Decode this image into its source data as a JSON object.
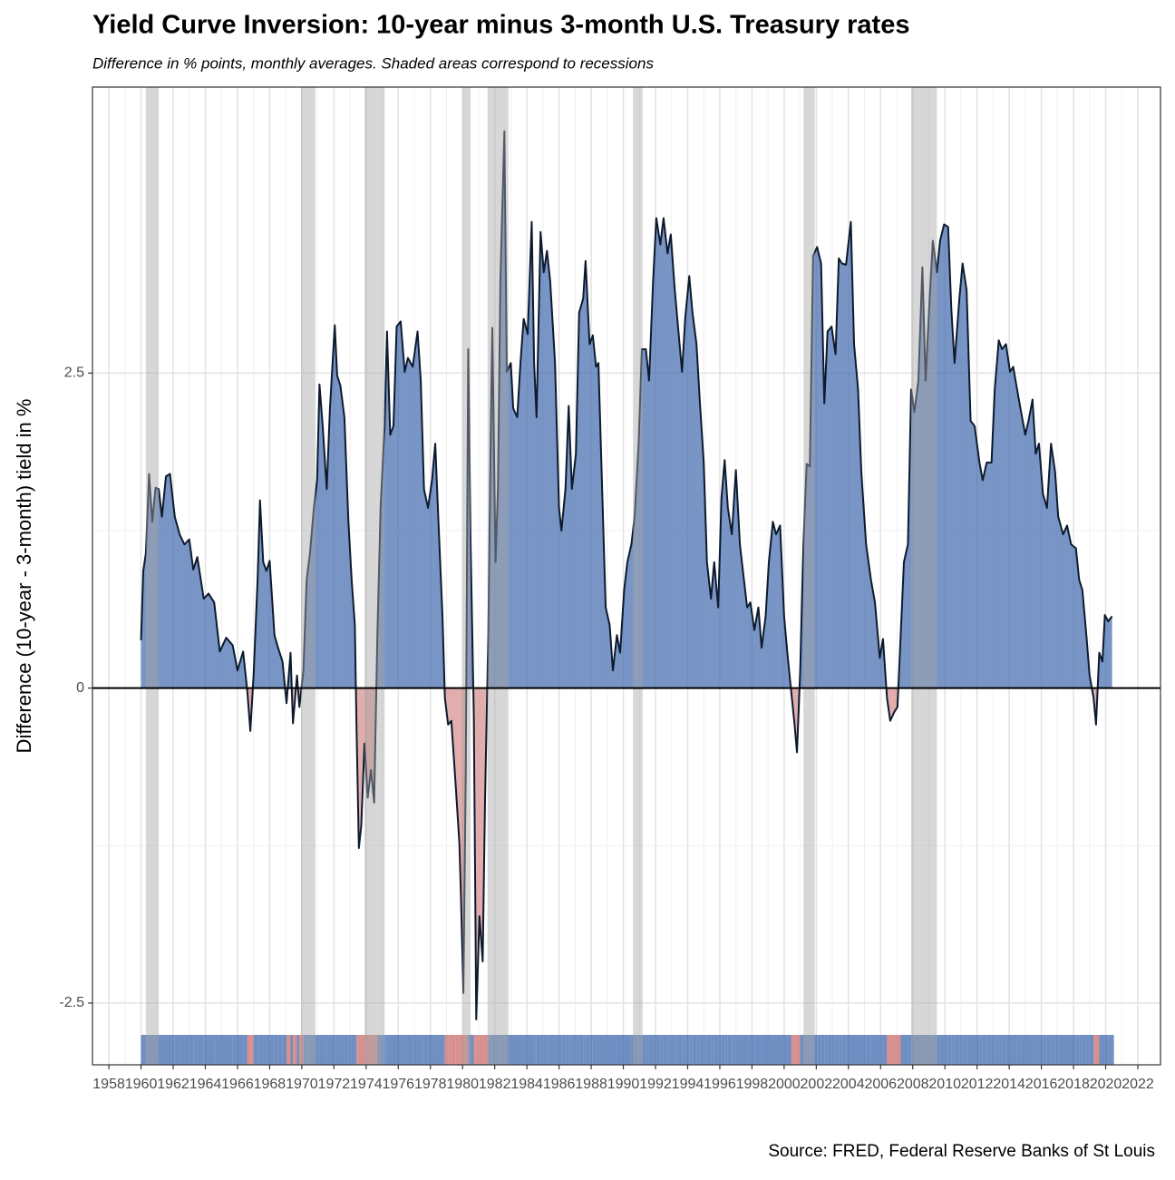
{
  "chart_data": {
    "type": "area",
    "title": "Yield Curve Inversion: 10-year minus 3-month U.S. Treasury rates",
    "subtitle": "Difference in % points, monthly averages. Shaded areas correspond to recessions",
    "y_label": "Difference (10-year - 3-month) tield in %",
    "caption": "Source: FRED, Federal Reserve Banks of St Louis",
    "xlim": [
      1956.98,
      2023.41
    ],
    "ylim": [
      -2.99,
      4.77
    ],
    "xticks": [
      1958,
      1960,
      1962,
      1964,
      1966,
      1968,
      1970,
      1972,
      1974,
      1976,
      1978,
      1980,
      1982,
      1984,
      1986,
      1988,
      1990,
      1992,
      1994,
      1996,
      1998,
      2000,
      2002,
      2004,
      2006,
      2008,
      2010,
      2012,
      2014,
      2016,
      2018,
      2020,
      2022
    ],
    "yticks": [
      -2.5,
      0.0,
      2.5
    ],
    "grid": true,
    "reference_line": 0,
    "colors": {
      "positive": "#3f68ad",
      "negative": "#c96a6a",
      "line": "#0d1a2e",
      "recession": "#a6a6a6"
    },
    "recessions": [
      [
        1960.3,
        1961.1
      ],
      [
        1969.95,
        1970.85
      ],
      [
        1973.9,
        1975.15
      ],
      [
        1980.0,
        1980.5
      ],
      [
        1981.55,
        1982.85
      ],
      [
        1990.6,
        1991.2
      ],
      [
        2001.2,
        2001.9
      ],
      [
        2007.9,
        2009.5
      ]
    ],
    "x": [
      1960.0,
      1960.14,
      1960.3,
      1960.5,
      1960.7,
      1960.9,
      1961.1,
      1961.3,
      1961.55,
      1961.8,
      1962.1,
      1962.4,
      1962.7,
      1963.0,
      1963.25,
      1963.5,
      1963.9,
      1964.2,
      1964.55,
      1964.9,
      1965.3,
      1965.7,
      1966.0,
      1966.35,
      1966.6,
      1966.8,
      1967.0,
      1967.25,
      1967.4,
      1967.6,
      1967.8,
      1968.0,
      1968.3,
      1968.5,
      1968.8,
      1969.05,
      1969.3,
      1969.45,
      1969.7,
      1969.85,
      1970.1,
      1970.3,
      1970.5,
      1970.75,
      1970.95,
      1971.1,
      1971.3,
      1971.55,
      1971.75,
      1972.05,
      1972.2,
      1972.4,
      1972.65,
      1972.9,
      1973.1,
      1973.3,
      1973.4,
      1973.55,
      1973.7,
      1973.9,
      1974.1,
      1974.3,
      1974.5,
      1974.7,
      1974.9,
      1975.15,
      1975.3,
      1975.5,
      1975.7,
      1975.9,
      1976.15,
      1976.4,
      1976.6,
      1976.9,
      1977.2,
      1977.4,
      1977.6,
      1977.85,
      1978.1,
      1978.3,
      1978.5,
      1978.75,
      1978.9,
      1979.1,
      1979.3,
      1979.55,
      1979.8,
      1979.9,
      1980.05,
      1980.2,
      1980.35,
      1980.5,
      1980.7,
      1980.85,
      1981.05,
      1981.25,
      1981.4,
      1981.6,
      1981.75,
      1981.85,
      1982.05,
      1982.2,
      1982.35,
      1982.6,
      1982.75,
      1983.0,
      1983.15,
      1983.4,
      1983.6,
      1983.8,
      1984.05,
      1984.3,
      1984.45,
      1984.6,
      1984.85,
      1985.05,
      1985.25,
      1985.45,
      1985.75,
      1986.0,
      1986.15,
      1986.4,
      1986.6,
      1986.8,
      1987.05,
      1987.25,
      1987.5,
      1987.65,
      1987.9,
      1988.1,
      1988.3,
      1988.45,
      1988.7,
      1988.9,
      1989.15,
      1989.35,
      1989.6,
      1989.8,
      1990.05,
      1990.25,
      1990.5,
      1990.7,
      1990.95,
      1991.15,
      1991.4,
      1991.6,
      1991.85,
      1992.05,
      1992.3,
      1992.5,
      1992.75,
      1992.95,
      1993.2,
      1993.4,
      1993.65,
      1993.85,
      1994.1,
      1994.3,
      1994.55,
      1994.75,
      1995.0,
      1995.2,
      1995.45,
      1995.65,
      1995.9,
      1996.1,
      1996.3,
      1996.5,
      1996.75,
      1997.0,
      1997.25,
      1997.5,
      1997.7,
      1997.9,
      1998.15,
      1998.4,
      1998.6,
      1998.85,
      1999.05,
      1999.3,
      1999.5,
      1999.75,
      2000.0,
      2000.2,
      2000.45,
      2000.65,
      2000.8,
      2001.0,
      2001.2,
      2001.4,
      2001.6,
      2001.8,
      2002.05,
      2002.3,
      2002.5,
      2002.7,
      2002.95,
      2003.2,
      2003.4,
      2003.6,
      2003.85,
      2004.15,
      2004.35,
      2004.6,
      2004.8,
      2005.1,
      2005.4,
      2005.65,
      2005.95,
      2006.15,
      2006.4,
      2006.6,
      2006.85,
      2007.05,
      2007.25,
      2007.45,
      2007.7,
      2007.9,
      2008.1,
      2008.35,
      2008.6,
      2008.8,
      2009.05,
      2009.25,
      2009.5,
      2009.7,
      2009.95,
      2010.2,
      2010.4,
      2010.6,
      2010.9,
      2011.1,
      2011.35,
      2011.6,
      2011.85,
      2012.15,
      2012.35,
      2012.6,
      2012.9,
      2013.1,
      2013.35,
      2013.55,
      2013.8,
      2014.05,
      2014.25,
      2014.45,
      2014.7,
      2015.0,
      2015.2,
      2015.45,
      2015.65,
      2015.85,
      2016.1,
      2016.35,
      2016.6,
      2016.85,
      2017.05,
      2017.35,
      2017.6,
      2017.85,
      2018.15,
      2018.35,
      2018.55,
      2018.8,
      2019.0,
      2019.25,
      2019.4,
      2019.6,
      2019.8,
      2019.95,
      2020.15,
      2020.4
    ],
    "values": [
      0.38,
      0.93,
      1.07,
      1.7,
      1.32,
      1.59,
      1.58,
      1.36,
      1.68,
      1.7,
      1.36,
      1.22,
      1.14,
      1.18,
      0.94,
      1.04,
      0.71,
      0.75,
      0.68,
      0.29,
      0.4,
      0.34,
      0.14,
      0.29,
      -0.01,
      -0.34,
      0.1,
      0.86,
      1.49,
      1.0,
      0.93,
      1.01,
      0.42,
      0.33,
      0.21,
      -0.12,
      0.28,
      -0.28,
      0.1,
      -0.15,
      0.14,
      0.86,
      1.06,
      1.43,
      1.65,
      2.41,
      2.08,
      1.58,
      2.22,
      2.88,
      2.48,
      2.4,
      2.15,
      1.32,
      0.86,
      0.5,
      -0.29,
      -1.27,
      -1.09,
      -0.44,
      -0.87,
      -0.65,
      -0.91,
      0.42,
      1.43,
      2.08,
      2.83,
      2.01,
      2.08,
      2.87,
      2.91,
      2.51,
      2.62,
      2.55,
      2.83,
      2.44,
      1.58,
      1.43,
      1.65,
      1.94,
      1.32,
      0.57,
      -0.08,
      -0.29,
      -0.26,
      -0.73,
      -1.23,
      -1.66,
      -2.42,
      -0.65,
      2.69,
      1.14,
      -0.22,
      -2.63,
      -1.81,
      -2.17,
      -0.87,
      0.42,
      2.01,
      2.86,
      1.0,
      1.58,
      3.23,
      4.42,
      2.51,
      2.58,
      2.22,
      2.15,
      2.58,
      2.93,
      2.81,
      3.7,
      2.58,
      2.15,
      3.62,
      3.3,
      3.47,
      3.23,
      2.58,
      1.43,
      1.25,
      1.58,
      2.24,
      1.58,
      1.86,
      2.98,
      3.09,
      3.39,
      2.73,
      2.8,
      2.55,
      2.58,
      1.5,
      0.64,
      0.5,
      0.14,
      0.42,
      0.28,
      0.78,
      1.0,
      1.14,
      1.36,
      1.94,
      2.69,
      2.69,
      2.44,
      3.23,
      3.73,
      3.52,
      3.73,
      3.45,
      3.6,
      3.16,
      2.87,
      2.51,
      2.94,
      3.27,
      2.98,
      2.73,
      2.29,
      1.79,
      1.0,
      0.71,
      1.0,
      0.64,
      1.5,
      1.81,
      1.43,
      1.22,
      1.73,
      1.14,
      0.86,
      0.64,
      0.68,
      0.46,
      0.64,
      0.32,
      0.57,
      1.0,
      1.32,
      1.22,
      1.29,
      0.57,
      0.28,
      -0.04,
      -0.29,
      -0.51,
      0.14,
      1.14,
      1.78,
      1.76,
      3.43,
      3.5,
      3.37,
      2.26,
      2.83,
      2.87,
      2.65,
      3.41,
      3.37,
      3.36,
      3.7,
      2.73,
      2.37,
      1.72,
      1.14,
      0.86,
      0.68,
      0.24,
      0.39,
      -0.08,
      -0.26,
      -0.19,
      -0.15,
      0.42,
      1.0,
      1.14,
      2.37,
      2.19,
      2.44,
      3.34,
      2.44,
      3.09,
      3.55,
      3.3,
      3.55,
      3.68,
      3.66,
      3.01,
      2.58,
      3.09,
      3.37,
      3.16,
      2.12,
      2.08,
      1.79,
      1.65,
      1.79,
      1.79,
      2.37,
      2.76,
      2.69,
      2.73,
      2.51,
      2.55,
      2.4,
      2.22,
      2.01,
      2.12,
      2.29,
      1.86,
      1.94,
      1.54,
      1.43,
      1.94,
      1.72,
      1.36,
      1.22,
      1.29,
      1.14,
      1.11,
      0.86,
      0.78,
      0.42,
      0.1,
      -0.08,
      -0.29,
      0.28,
      0.21,
      0.58,
      0.53,
      0.57
    ]
  }
}
